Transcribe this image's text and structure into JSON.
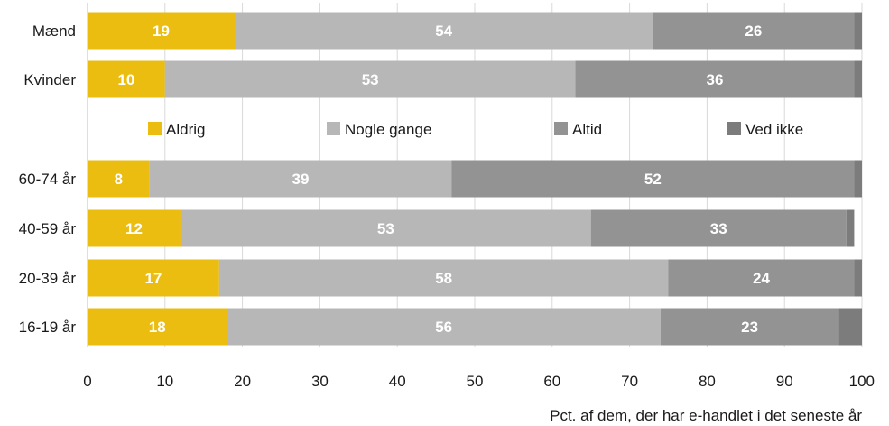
{
  "chart_data": {
    "type": "bar",
    "orientation": "horizontal",
    "stacked": true,
    "title": "",
    "xlabel": "Pct. af dem, der har e-handlet i det seneste år",
    "ylabel": "",
    "xlim": [
      0,
      100
    ],
    "x_ticks": [
      "0",
      "10",
      "20",
      "30",
      "40",
      "50",
      "60",
      "70",
      "80",
      "90",
      "100"
    ],
    "grid": "vertical",
    "legend_position": "middle",
    "groups": [
      {
        "categories": [
          "Mænd",
          "Kvinder"
        ],
        "series": [
          {
            "name": "Aldrig",
            "color": "#ebbd10",
            "values": [
              19,
              10
            ],
            "labels": [
              "19",
              "10"
            ]
          },
          {
            "name": "Nogle gange",
            "color": "#b7b7b7",
            "values": [
              54,
              53
            ],
            "labels": [
              "54",
              "53"
            ]
          },
          {
            "name": "Altid",
            "color": "#939393",
            "values": [
              26,
              36
            ],
            "labels": [
              "26",
              "36"
            ]
          },
          {
            "name": "Ved ikke",
            "color": "#7c7c7c",
            "values": [
              1,
              1
            ],
            "labels": [
              "",
              ""
            ]
          }
        ]
      },
      {
        "categories": [
          "60-74 år",
          "40-59 år",
          "20-39 år",
          "16-19 år"
        ],
        "series": [
          {
            "name": "Aldrig",
            "color": "#ebbd10",
            "values": [
              8,
              12,
              17,
              18
            ],
            "labels": [
              "8",
              "12",
              "17",
              "18"
            ]
          },
          {
            "name": "Nogle gange",
            "color": "#b7b7b7",
            "values": [
              39,
              53,
              58,
              56
            ],
            "labels": [
              "39",
              "53",
              "58",
              "56"
            ]
          },
          {
            "name": "Altid",
            "color": "#939393",
            "values": [
              52,
              33,
              24,
              23
            ],
            "labels": [
              "52",
              "33",
              "24",
              "23"
            ]
          },
          {
            "name": "Ved ikke",
            "color": "#7c7c7c",
            "values": [
              1,
              1,
              1,
              3
            ],
            "labels": [
              "",
              "",
              "",
              ""
            ]
          }
        ]
      }
    ],
    "legend": [
      {
        "name": "Aldrig",
        "color": "#ebbd10"
      },
      {
        "name": "Nogle gange",
        "color": "#b7b7b7"
      },
      {
        "name": "Altid",
        "color": "#939393"
      },
      {
        "name": "Ved ikke",
        "color": "#7c7c7c"
      }
    ]
  }
}
